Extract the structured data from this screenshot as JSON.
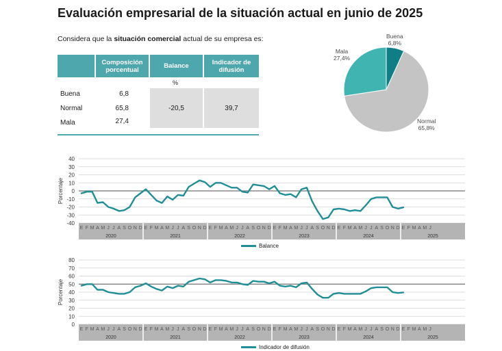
{
  "title": "Evaluación empresarial de la situación actual en junio de 2025",
  "subtitle": {
    "prefix": "Considera que la ",
    "bold": "situación comercial",
    "suffix": " actual de su empresa es:"
  },
  "table": {
    "headers": {
      "composition": "Composición porcentual",
      "balance": "Balance",
      "diffusion": "Indicador de difusión"
    },
    "unit": "%",
    "rows": [
      {
        "label": "Buena",
        "value": "6,8"
      },
      {
        "label": "Normal",
        "value": "65,8"
      },
      {
        "label": "Mala",
        "value": "27,4"
      }
    ],
    "balance": "-20,5",
    "diffusion": "39,7"
  },
  "colors": {
    "teal": "#4ea7ad",
    "dark_teal": "#0e7f86",
    "line": "#1f8e96",
    "gray": "#c4c4c4",
    "band": "#b4b4b4"
  },
  "chart_data": [
    {
      "type": "pie",
      "labels": [
        "Buena",
        "Normal",
        "Mala"
      ],
      "values": [
        6.8,
        65.8,
        27.4
      ],
      "value_labels": [
        "6,8%",
        "65,8%",
        "27,4%"
      ],
      "colors": [
        "#0e7f86",
        "#c4c4c4",
        "#3fb4b0"
      ]
    },
    {
      "type": "line",
      "ylabel": "Porcentaje",
      "ylim": [
        -40,
        40
      ],
      "yticks": [
        40,
        30,
        20,
        10,
        0,
        -10,
        -20,
        -30,
        -40
      ],
      "month_letters": [
        "E",
        "F",
        "M",
        "A",
        "M",
        "J",
        "J",
        "A",
        "S",
        "O",
        "N",
        "D"
      ],
      "years": [
        "2020",
        "2021",
        "2022",
        "2023",
        "2024",
        "2025"
      ],
      "x_start": "2020-01",
      "series": [
        {
          "name": "Balance",
          "values": [
            -3,
            -1,
            -1,
            -15,
            -14,
            -20,
            -22,
            -25,
            -24,
            -20,
            -8,
            -3,
            2,
            -5,
            -12,
            -15,
            -7,
            -11,
            -5,
            -6,
            5,
            9,
            13,
            11,
            5,
            10,
            10,
            7,
            4,
            4,
            -1,
            -2,
            8,
            7,
            6,
            2,
            6,
            -3,
            -5,
            -4,
            -8,
            2,
            4,
            -13,
            -25,
            -35,
            -33,
            -23,
            -22,
            -23,
            -25,
            -24,
            -25,
            -18,
            -10,
            -8,
            -8,
            -8,
            -20,
            -22,
            -20.5
          ]
        }
      ]
    },
    {
      "type": "line",
      "ylabel": "Porcentaje",
      "ylim": [
        0,
        80
      ],
      "yticks": [
        80,
        70,
        60,
        50,
        40,
        30,
        20,
        10,
        0
      ],
      "month_letters": [
        "E",
        "F",
        "M",
        "A",
        "M",
        "J",
        "J",
        "A",
        "S",
        "O",
        "N",
        "D"
      ],
      "years": [
        "2020",
        "2021",
        "2022",
        "2023",
        "2024",
        "2025"
      ],
      "x_start": "2020-01",
      "series": [
        {
          "name": "Indicador de difusión",
          "values": [
            48,
            50,
            50,
            43,
            43,
            40,
            39,
            38,
            38,
            40,
            46,
            48,
            51,
            47,
            44,
            42,
            47,
            45,
            48,
            47,
            53,
            55,
            57,
            56,
            52,
            55,
            55,
            54,
            52,
            52,
            50,
            49,
            54,
            53,
            53,
            51,
            53,
            48,
            47,
            48,
            46,
            51,
            52,
            44,
            37,
            33,
            33,
            38,
            39,
            38,
            38,
            38,
            38,
            41,
            45,
            46,
            46,
            46,
            40,
            39,
            39.7
          ]
        }
      ]
    }
  ]
}
